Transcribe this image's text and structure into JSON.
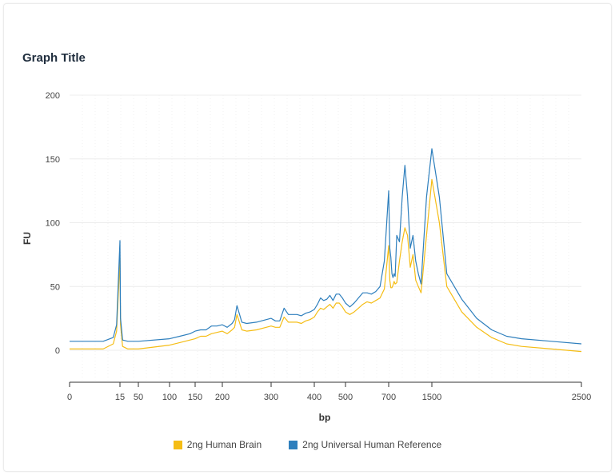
{
  "chart_data": {
    "type": "line",
    "title": "Graph Title",
    "xlabel": "bp",
    "ylabel": "FU",
    "ylim": [
      -25,
      200
    ],
    "yticks": [
      0,
      50,
      100,
      150,
      200
    ],
    "xticks": [
      0,
      15,
      50,
      100,
      150,
      200,
      300,
      400,
      500,
      700,
      1500,
      2500
    ],
    "grid": true,
    "legend_position": "bottom",
    "series": [
      {
        "name": "2ng Human Brain",
        "color": "#f5bd15",
        "points": [
          [
            0,
            1
          ],
          [
            10,
            1
          ],
          [
            13,
            5
          ],
          [
            14,
            15
          ],
          [
            15,
            72
          ],
          [
            16,
            20
          ],
          [
            20,
            3
          ],
          [
            30,
            1
          ],
          [
            50,
            1
          ],
          [
            100,
            4
          ],
          [
            120,
            6
          ],
          [
            140,
            8
          ],
          [
            150,
            9
          ],
          [
            160,
            11
          ],
          [
            170,
            11
          ],
          [
            180,
            13
          ],
          [
            190,
            14
          ],
          [
            200,
            15
          ],
          [
            210,
            13
          ],
          [
            220,
            16
          ],
          [
            225,
            18
          ],
          [
            230,
            28
          ],
          [
            240,
            16
          ],
          [
            250,
            15
          ],
          [
            270,
            16
          ],
          [
            290,
            18
          ],
          [
            300,
            19
          ],
          [
            310,
            18
          ],
          [
            320,
            18
          ],
          [
            330,
            26
          ],
          [
            340,
            22
          ],
          [
            350,
            22
          ],
          [
            360,
            22
          ],
          [
            370,
            21
          ],
          [
            380,
            23
          ],
          [
            390,
            24
          ],
          [
            400,
            26
          ],
          [
            410,
            30
          ],
          [
            420,
            33
          ],
          [
            430,
            32
          ],
          [
            440,
            34
          ],
          [
            450,
            36
          ],
          [
            460,
            33
          ],
          [
            470,
            37
          ],
          [
            480,
            37
          ],
          [
            490,
            34
          ],
          [
            500,
            30
          ],
          [
            520,
            28
          ],
          [
            540,
            30
          ],
          [
            560,
            33
          ],
          [
            580,
            36
          ],
          [
            600,
            38
          ],
          [
            620,
            37
          ],
          [
            640,
            39
          ],
          [
            660,
            41
          ],
          [
            680,
            48
          ],
          [
            700,
            82
          ],
          [
            720,
            55
          ],
          [
            740,
            49
          ],
          [
            760,
            49
          ],
          [
            780,
            51
          ],
          [
            800,
            54
          ],
          [
            820,
            52
          ],
          [
            850,
            53
          ],
          [
            900,
            70
          ],
          [
            950,
            85
          ],
          [
            1000,
            96
          ],
          [
            1050,
            90
          ],
          [
            1100,
            65
          ],
          [
            1150,
            75
          ],
          [
            1200,
            55
          ],
          [
            1250,
            50
          ],
          [
            1300,
            45
          ],
          [
            1400,
            90
          ],
          [
            1500,
            134
          ],
          [
            1550,
            100
          ],
          [
            1600,
            50
          ],
          [
            1700,
            30
          ],
          [
            1800,
            18
          ],
          [
            1900,
            10
          ],
          [
            2000,
            5
          ],
          [
            2100,
            3
          ],
          [
            2300,
            1
          ],
          [
            2500,
            -1
          ]
        ]
      },
      {
        "name": "2ng Universal Human Reference",
        "color": "#2e7fbd",
        "points": [
          [
            0,
            7
          ],
          [
            10,
            7
          ],
          [
            13,
            10
          ],
          [
            14,
            20
          ],
          [
            15,
            86
          ],
          [
            16,
            25
          ],
          [
            20,
            8
          ],
          [
            30,
            7
          ],
          [
            50,
            7
          ],
          [
            100,
            9
          ],
          [
            120,
            11
          ],
          [
            140,
            13
          ],
          [
            150,
            15
          ],
          [
            160,
            16
          ],
          [
            170,
            16
          ],
          [
            180,
            19
          ],
          [
            190,
            19
          ],
          [
            200,
            20
          ],
          [
            210,
            18
          ],
          [
            220,
            21
          ],
          [
            225,
            24
          ],
          [
            230,
            35
          ],
          [
            240,
            22
          ],
          [
            250,
            21
          ],
          [
            270,
            22
          ],
          [
            290,
            24
          ],
          [
            300,
            25
          ],
          [
            310,
            23
          ],
          [
            320,
            23
          ],
          [
            330,
            33
          ],
          [
            340,
            28
          ],
          [
            350,
            28
          ],
          [
            360,
            28
          ],
          [
            370,
            27
          ],
          [
            380,
            29
          ],
          [
            390,
            30
          ],
          [
            400,
            32
          ],
          [
            410,
            36
          ],
          [
            420,
            41
          ],
          [
            430,
            39
          ],
          [
            440,
            40
          ],
          [
            450,
            43
          ],
          [
            460,
            39
          ],
          [
            470,
            44
          ],
          [
            480,
            44
          ],
          [
            490,
            41
          ],
          [
            500,
            37
          ],
          [
            520,
            34
          ],
          [
            540,
            37
          ],
          [
            560,
            41
          ],
          [
            580,
            45
          ],
          [
            600,
            45
          ],
          [
            620,
            44
          ],
          [
            640,
            46
          ],
          [
            660,
            50
          ],
          [
            680,
            70
          ],
          [
            700,
            125
          ],
          [
            720,
            80
          ],
          [
            740,
            73
          ],
          [
            760,
            60
          ],
          [
            780,
            57
          ],
          [
            800,
            60
          ],
          [
            820,
            58
          ],
          [
            850,
            90
          ],
          [
            900,
            85
          ],
          [
            950,
            120
          ],
          [
            1000,
            145
          ],
          [
            1050,
            120
          ],
          [
            1100,
            80
          ],
          [
            1150,
            90
          ],
          [
            1200,
            70
          ],
          [
            1250,
            60
          ],
          [
            1300,
            52
          ],
          [
            1400,
            120
          ],
          [
            1500,
            158
          ],
          [
            1550,
            120
          ],
          [
            1600,
            60
          ],
          [
            1700,
            40
          ],
          [
            1800,
            25
          ],
          [
            1900,
            16
          ],
          [
            2000,
            11
          ],
          [
            2100,
            9
          ],
          [
            2300,
            7
          ],
          [
            2500,
            5
          ]
        ]
      }
    ]
  }
}
